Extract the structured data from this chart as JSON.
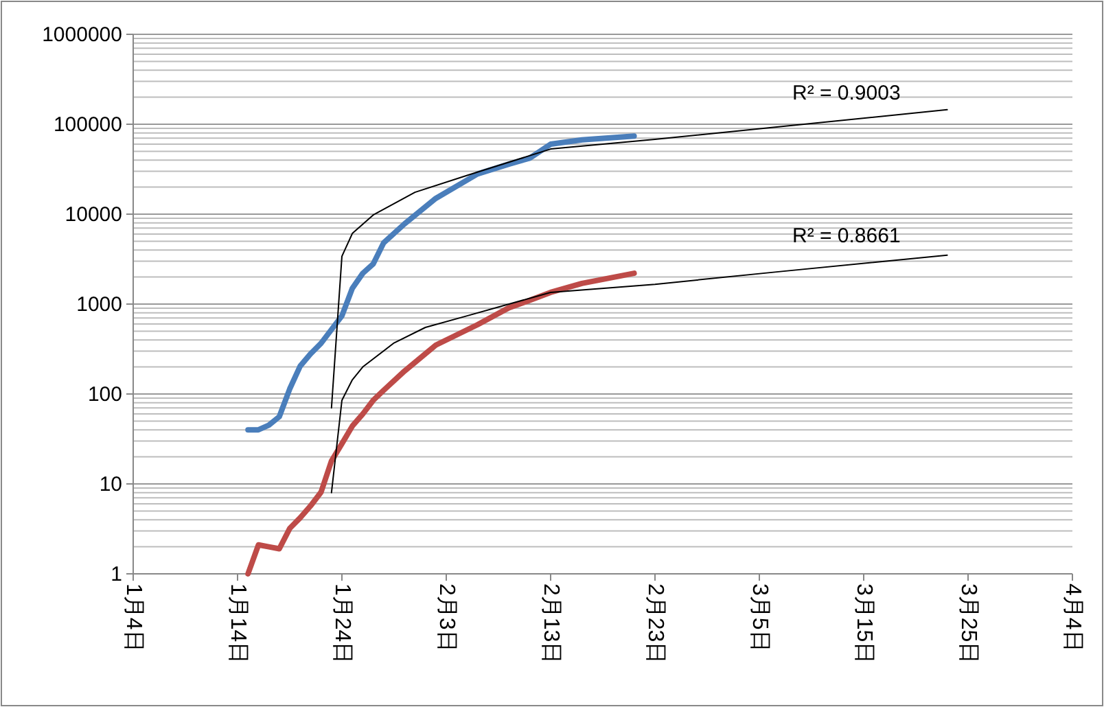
{
  "chart_data": {
    "type": "line",
    "log": "y",
    "grid": "y",
    "line_style": "solid",
    "marker": "none",
    "x": [
      "--01-15",
      "--01-16",
      "--01-17",
      "--01-18",
      "--01-19",
      "--01-20",
      "--01-21",
      "--01-22",
      "--01-23",
      "--01-24",
      "--01-25",
      "--01-26",
      "--01-27",
      "--01-28",
      "--01-30",
      "--02-02",
      "--02-06",
      "--02-09",
      "--02-11",
      "--02-13",
      "--02-16",
      "--02-21"
    ],
    "series": [
      {
        "color": "#4a7ebb",
        "values": [
          40,
          40,
          45,
          56,
          114,
          204,
          280,
          366,
          520,
          740,
          1500,
          2200,
          2800,
          4800,
          7800,
          15000,
          28000,
          36000,
          42000,
          60000,
          67000,
          74000
        ]
      },
      {
        "color": "#be4b48",
        "values": [
          1,
          2.1,
          2,
          1.9,
          3.2,
          4.2,
          5.7,
          8.1,
          18,
          28,
          44,
          60,
          85,
          110,
          180,
          350,
          590,
          910,
          1100,
          1350,
          1700,
          2200
        ]
      },
      {
        "color": "#000000",
        "x": [
          "--01-23",
          "--01-24",
          "--01-25",
          "--01-27",
          "--01-31",
          "--02-05",
          "--02-13",
          "--02-23",
          "--03-07",
          "--03-23"
        ],
        "values": [
          70,
          3400,
          6100,
          9800,
          17500,
          27000,
          53000,
          68000,
          94000,
          145000
        ]
      },
      {
        "color": "#000000",
        "x": [
          "--01-23",
          "--01-24",
          "--01-25",
          "--01-26",
          "--01-29",
          "--02-01",
          "--02-05",
          "--02-13",
          "--02-23",
          "--03-07",
          "--03-23"
        ],
        "values": [
          8,
          85,
          144,
          200,
          370,
          550,
          740,
          1350,
          1660,
          2300,
          3500
        ]
      }
    ],
    "xlim": [
      "--01-04",
      "--04-04"
    ],
    "xticks": [
      {
        "value": "--01-04",
        "label": "1月4日"
      },
      {
        "value": "--01-14",
        "label": "1月14日"
      },
      {
        "value": "--01-24",
        "label": "1月24日"
      },
      {
        "value": "--02-03",
        "label": "2月3日"
      },
      {
        "value": "--02-13",
        "label": "2月13日"
      },
      {
        "value": "--02-23",
        "label": "2月23日"
      },
      {
        "value": "--03-05",
        "label": "3月5日"
      },
      {
        "value": "--03-15",
        "label": "3月15日"
      },
      {
        "value": "--03-25",
        "label": "3月25日"
      },
      {
        "value": "--04-04",
        "label": "4月4日"
      }
    ],
    "ylim": [
      1,
      1000000
    ],
    "yticks": [
      1,
      10,
      100,
      1000,
      10000,
      100000,
      1000000
    ],
    "annotations": [
      "R² = 0.9003",
      "R² = 0.8661"
    ]
  }
}
